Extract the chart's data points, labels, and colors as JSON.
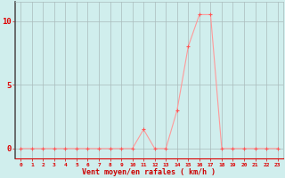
{
  "x": [
    0,
    1,
    2,
    3,
    4,
    5,
    6,
    7,
    8,
    9,
    10,
    11,
    12,
    13,
    14,
    15,
    16,
    17,
    18,
    19,
    20,
    21,
    22,
    23
  ],
  "y": [
    0,
    0,
    0,
    0,
    0,
    0,
    0,
    0,
    0,
    0,
    0,
    1.5,
    0,
    0,
    3,
    8,
    10.5,
    10.5,
    0,
    0,
    0,
    0,
    0,
    0
  ],
  "bg_color": "#d0eeed",
  "line_color": "#ff9999",
  "marker_color": "#ff5555",
  "grid_color": "#aabbbb",
  "xlabel": "Vent moyen/en rafales ( km/h )",
  "ylabel_ticks": [
    0,
    5,
    10
  ],
  "xlim": [
    -0.5,
    23.5
  ],
  "ylim": [
    -0.8,
    11.5
  ],
  "tick_color": "#dd0000",
  "label_color": "#cc0000",
  "left_spine_color": "#555555"
}
